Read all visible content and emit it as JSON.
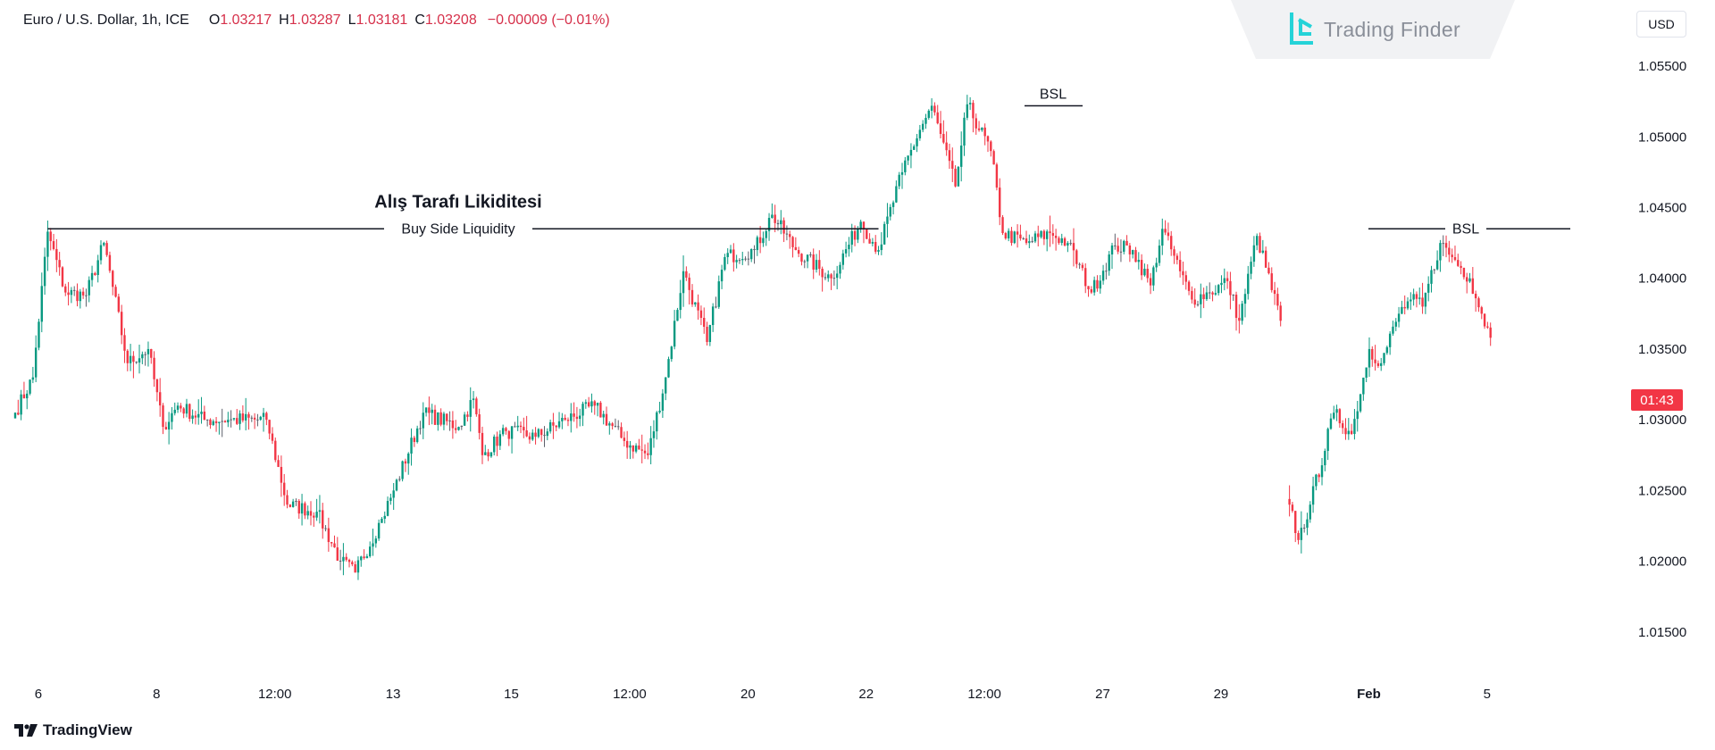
{
  "legend": {
    "symbol": "Euro / U.S. Dollar, 1h, ICE",
    "o_label": "O",
    "o_value": "1.03217",
    "h_label": "H",
    "h_value": "1.03287",
    "l_label": "L",
    "l_value": "1.03181",
    "c_label": "C",
    "c_value": "1.03208",
    "change": "−0.00009 (−0.01%)"
  },
  "currency": "USD",
  "brand": {
    "name": "Trading Finder"
  },
  "footer": {
    "name": "TradingView"
  },
  "countdown": "01:43",
  "annotations": {
    "main_title": "Alış Tarafı Likiditesi",
    "main_label": "Buy Side Liquidity",
    "bsl_top": "BSL",
    "bsl_right": "BSL"
  },
  "colors": {
    "up": "#089981",
    "down": "#f23645",
    "neutral": "#5d606b",
    "countdown_bg": "#f23645"
  },
  "chart_data": {
    "type": "candlestick",
    "title": "Euro / U.S. Dollar, 1h, ICE",
    "ylabel": "USD",
    "ylim": [
      1.0112,
      1.0569
    ],
    "yticks": [
      "1.05500",
      "1.05000",
      "1.04500",
      "1.04000",
      "1.03500",
      "1.03000",
      "1.02500",
      "1.02000",
      "1.01500"
    ],
    "xticks": [
      {
        "label": "6",
        "i": 3
      },
      {
        "label": "8",
        "i": 43
      },
      {
        "label": "12:00",
        "i": 83
      },
      {
        "label": "13",
        "i": 123
      },
      {
        "label": "15",
        "i": 163
      },
      {
        "label": "12:00",
        "i": 203
      },
      {
        "label": "20",
        "i": 243
      },
      {
        "label": "22",
        "i": 283
      },
      {
        "label": "12:00",
        "i": 323
      },
      {
        "label": "27",
        "i": 363
      },
      {
        "label": "29",
        "i": 403
      },
      {
        "label": "Feb",
        "i": 453
      },
      {
        "label": "5",
        "i": 493
      }
    ],
    "anchors": [
      [
        0,
        1.0305
      ],
      [
        6,
        1.033
      ],
      [
        11,
        1.0433
      ],
      [
        17,
        1.039
      ],
      [
        24,
        1.0388
      ],
      [
        30,
        1.0425
      ],
      [
        38,
        1.034
      ],
      [
        45,
        1.035
      ],
      [
        50,
        1.0295
      ],
      [
        55,
        1.031
      ],
      [
        64,
        1.03
      ],
      [
        72,
        1.03
      ],
      [
        85,
        1.03
      ],
      [
        92,
        1.024
      ],
      [
        102,
        1.0235
      ],
      [
        110,
        1.02
      ],
      [
        115,
        1.0192
      ],
      [
        124,
        1.023
      ],
      [
        128,
        1.025
      ],
      [
        138,
        1.0305
      ],
      [
        150,
        1.0295
      ],
      [
        155,
        1.0315
      ],
      [
        158,
        1.0275
      ],
      [
        166,
        1.0292
      ],
      [
        176,
        1.0288
      ],
      [
        186,
        1.03
      ],
      [
        196,
        1.031
      ],
      [
        206,
        1.0285
      ],
      [
        214,
        1.0275
      ],
      [
        220,
        1.033
      ],
      [
        226,
        1.0405
      ],
      [
        234,
        1.0355
      ],
      [
        240,
        1.0415
      ],
      [
        250,
        1.042
      ],
      [
        256,
        1.0445
      ],
      [
        264,
        1.042
      ],
      [
        276,
        1.04
      ],
      [
        286,
        1.044
      ],
      [
        292,
        1.042
      ],
      [
        300,
        1.0475
      ],
      [
        306,
        1.0505
      ],
      [
        310,
        1.0522
      ],
      [
        318,
        1.0465
      ],
      [
        322,
        1.0523
      ],
      [
        330,
        1.049
      ],
      [
        334,
        1.0432
      ],
      [
        342,
        1.0425
      ],
      [
        350,
        1.0432
      ],
      [
        356,
        1.0425
      ],
      [
        364,
        1.039
      ],
      [
        372,
        1.0423
      ],
      [
        378,
        1.042
      ],
      [
        384,
        1.0395
      ],
      [
        388,
        1.0435
      ],
      [
        394,
        1.0405
      ],
      [
        398,
        1.0385
      ],
      [
        404,
        1.039
      ],
      [
        410,
        1.0398
      ],
      [
        414,
        1.037
      ],
      [
        420,
        1.043
      ],
      [
        428,
        1.037
      ],
      [
        431,
        1.024
      ],
      [
        434,
        1.0215
      ],
      [
        438,
        1.024
      ],
      [
        446,
        1.0305
      ],
      [
        452,
        1.029
      ],
      [
        458,
        1.035
      ],
      [
        462,
        1.034
      ],
      [
        468,
        1.0375
      ],
      [
        472,
        1.0385
      ],
      [
        476,
        1.038
      ],
      [
        482,
        1.0425
      ],
      [
        486,
        1.0415
      ],
      [
        492,
        1.04
      ],
      [
        496,
        1.0375
      ],
      [
        499,
        1.0358
      ]
    ],
    "series_end_i": 499
  }
}
